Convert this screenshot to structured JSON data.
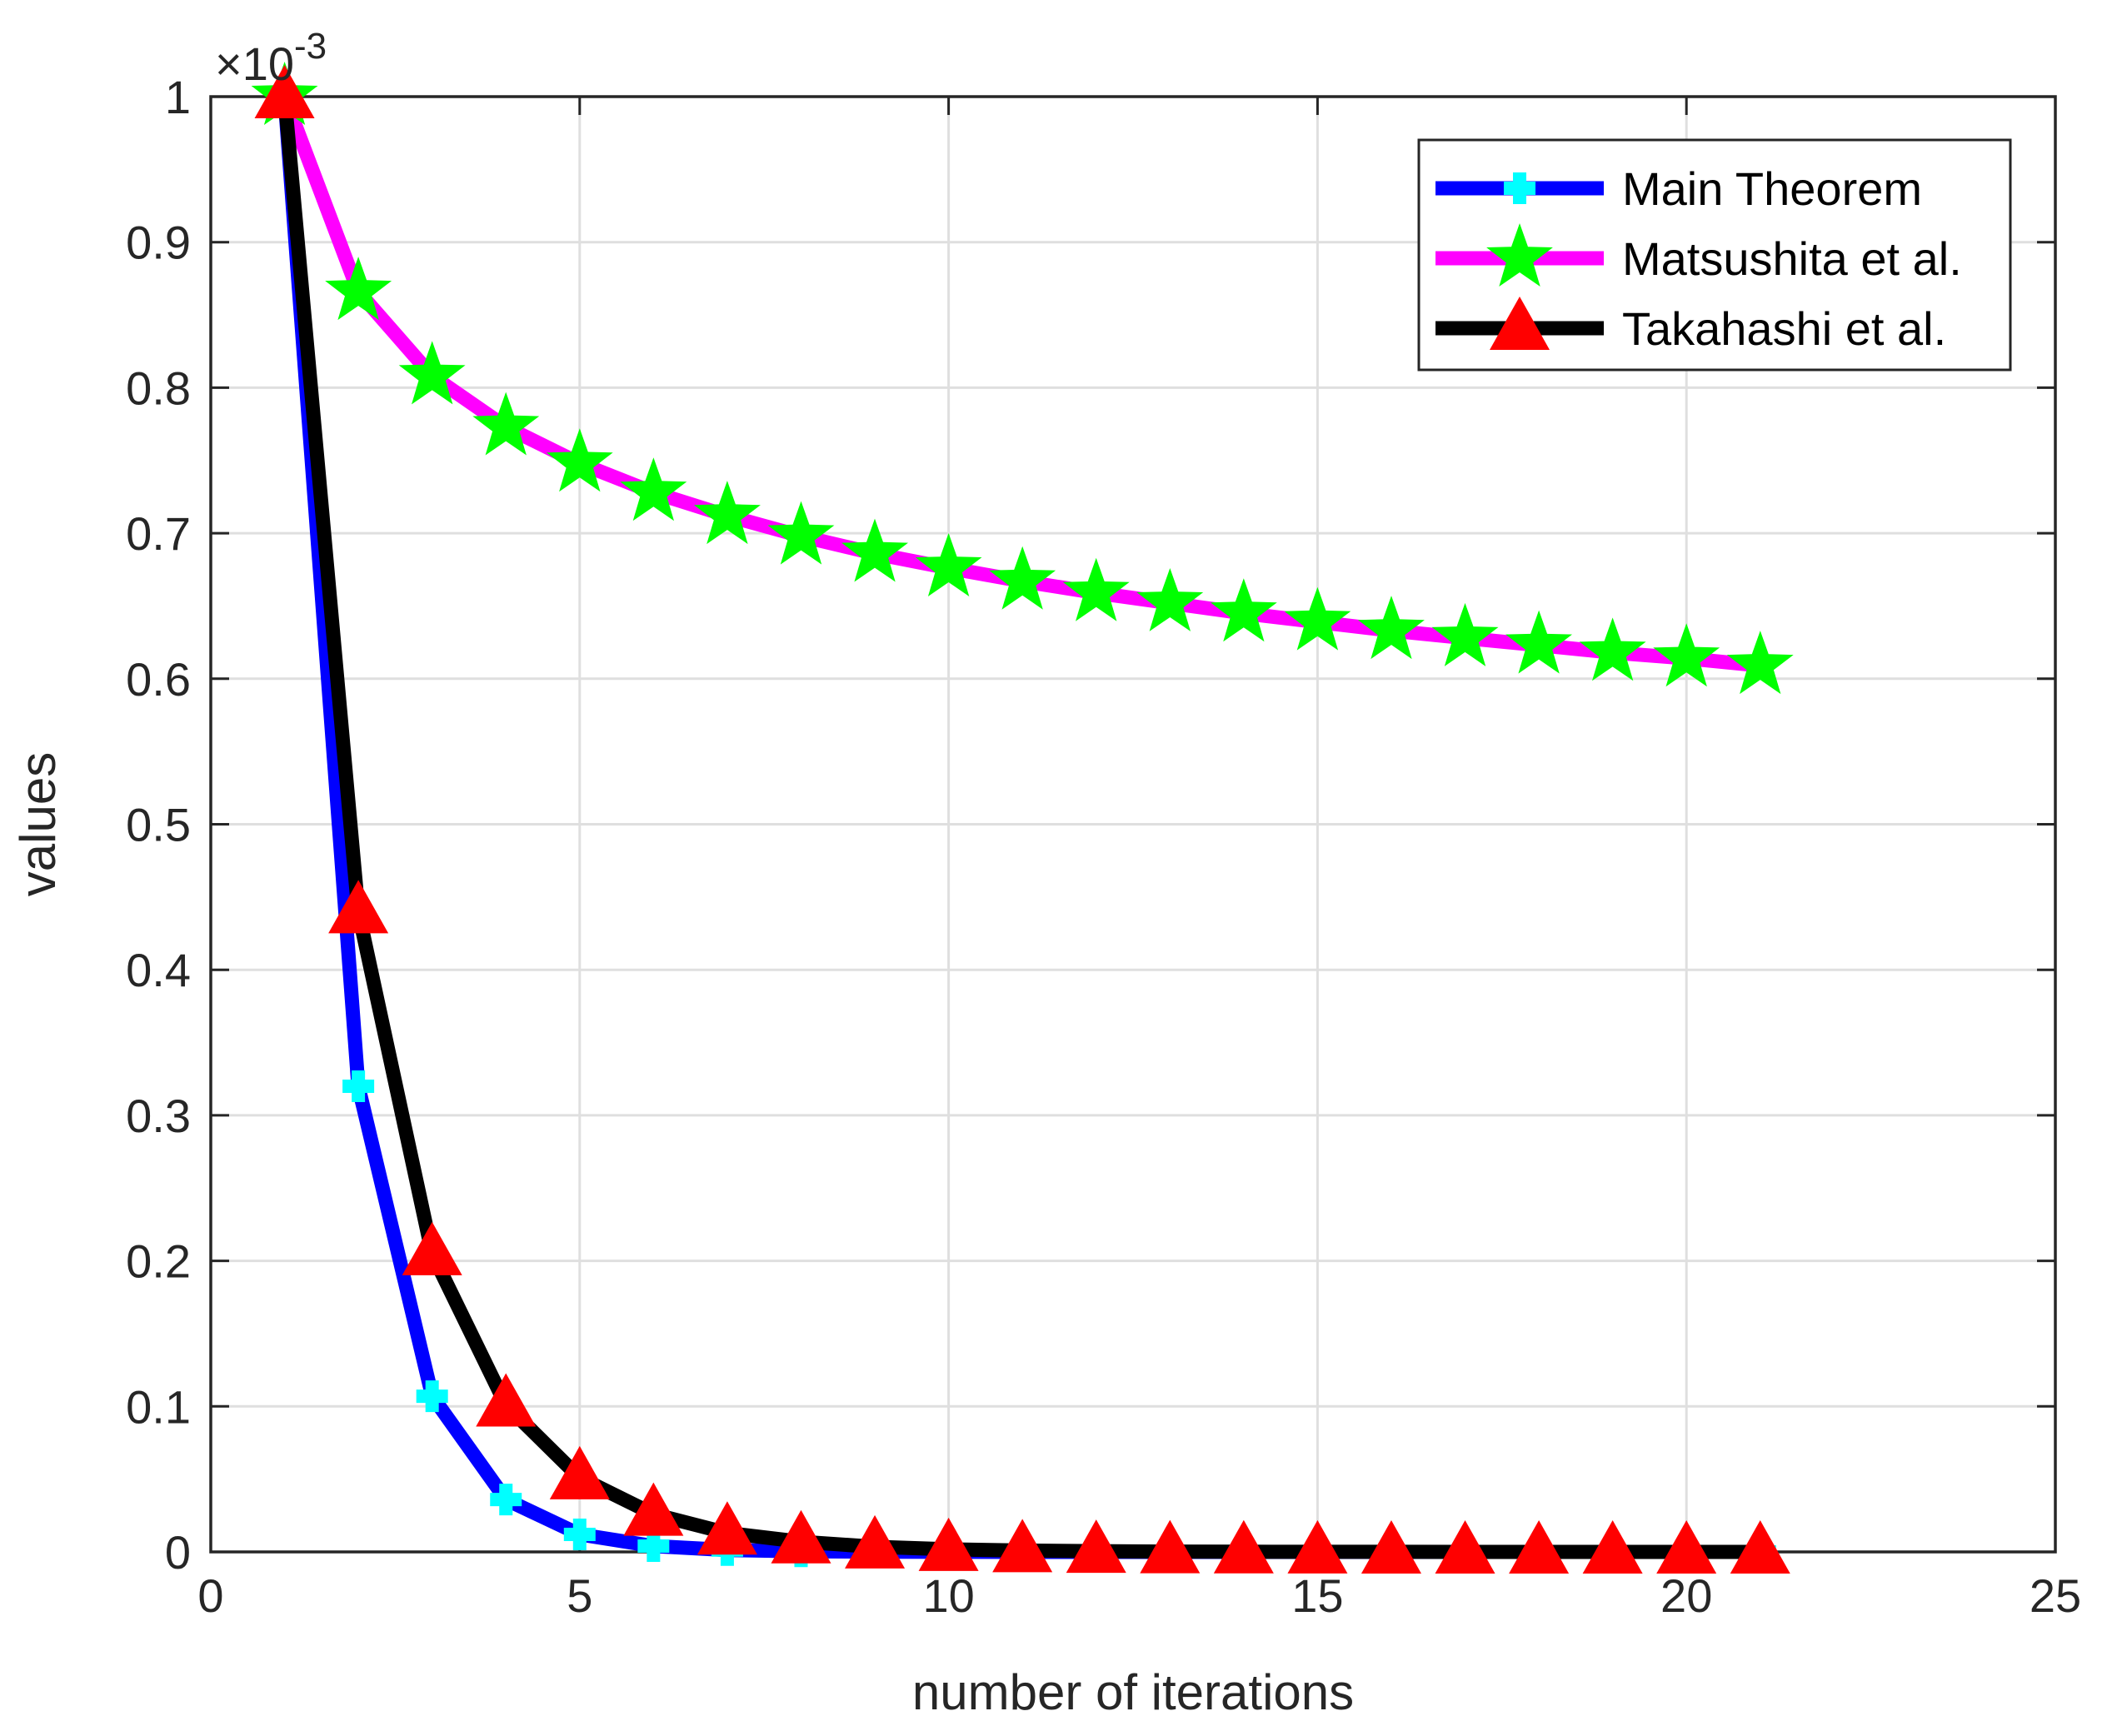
{
  "chart_data": {
    "type": "line",
    "xlabel": "number of iterations",
    "ylabel": "values",
    "multiplier_base": "×10",
    "multiplier_exp": "-3",
    "xlim": [
      0,
      25
    ],
    "ylim": [
      0,
      1
    ],
    "xticks": [
      0,
      5,
      10,
      15,
      20,
      25
    ],
    "yticks": [
      0,
      0.1,
      0.2,
      0.3,
      0.4,
      0.5,
      0.6,
      0.7,
      0.8,
      0.9,
      1
    ],
    "ytick_labels": [
      "0",
      "0.1",
      "0.2",
      "0.3",
      "0.4",
      "0.5",
      "0.6",
      "0.7",
      "0.8",
      "0.9",
      "1"
    ],
    "grid": true,
    "legend_position": "top-right",
    "x": [
      1,
      2,
      3,
      4,
      5,
      6,
      7,
      8,
      9,
      10,
      11,
      12,
      13,
      14,
      15,
      16,
      17,
      18,
      19,
      20,
      21
    ],
    "series": [
      {
        "name": "Main Theorem",
        "line_color": "#0000ff",
        "marker": "plus",
        "marker_color": "#00ffff",
        "values": [
          1.0,
          0.32,
          0.107,
          0.036,
          0.012,
          0.004,
          0.0013,
          0.0004,
          0.00015,
          5e-05,
          2e-05,
          5e-06,
          2e-06,
          1e-06,
          0,
          0,
          0,
          0,
          0,
          0,
          0
        ]
      },
      {
        "name": "Matsushita et al.",
        "line_color": "#ff00ff",
        "marker": "star",
        "marker_color": "#00ff00",
        "values": [
          1.0,
          0.866,
          0.808,
          0.773,
          0.748,
          0.728,
          0.712,
          0.698,
          0.686,
          0.676,
          0.667,
          0.659,
          0.652,
          0.645,
          0.639,
          0.633,
          0.628,
          0.623,
          0.618,
          0.614,
          0.609
        ]
      },
      {
        "name": "Takahashi et al.",
        "line_color": "#000000",
        "marker": "triangle",
        "marker_color": "#ff0000",
        "values": [
          1.0,
          0.44,
          0.205,
          0.101,
          0.051,
          0.026,
          0.013,
          0.007,
          0.0035,
          0.0018,
          0.0009,
          0.0005,
          0.00025,
          0.00013,
          6e-05,
          3e-05,
          2e-05,
          1e-05,
          0,
          0,
          0
        ]
      }
    ]
  }
}
